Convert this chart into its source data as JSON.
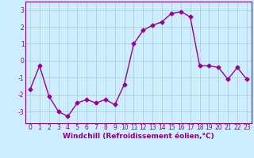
{
  "x": [
    0,
    1,
    2,
    3,
    4,
    5,
    6,
    7,
    8,
    9,
    10,
    11,
    12,
    13,
    14,
    15,
    16,
    17,
    18,
    19,
    20,
    21,
    22,
    23
  ],
  "y": [
    -1.7,
    -0.3,
    -2.1,
    -3.0,
    -3.3,
    -2.5,
    -2.3,
    -2.5,
    -2.3,
    -2.6,
    -1.4,
    1.0,
    1.8,
    2.1,
    2.3,
    2.8,
    2.9,
    2.6,
    -0.3,
    -0.3,
    -0.4,
    -1.1,
    -0.4,
    -1.1
  ],
  "line_color": "#990099",
  "marker": "D",
  "markersize": 2.5,
  "xlabel": "Windchill (Refroidissement éolien,°C)",
  "xlabel_fontsize": 6.5,
  "background_color": "#cceeff",
  "grid_color": "#aacccc",
  "ylim": [
    -3.7,
    3.5
  ],
  "yticks": [
    -3,
    -2,
    -1,
    0,
    1,
    2,
    3
  ],
  "xticks": [
    0,
    1,
    2,
    3,
    4,
    5,
    6,
    7,
    8,
    9,
    10,
    11,
    12,
    13,
    14,
    15,
    16,
    17,
    18,
    19,
    20,
    21,
    22,
    23
  ],
  "tick_fontsize": 5.5,
  "tick_color": "#880088",
  "axis_color": "#880088",
  "linewidth": 1.0
}
